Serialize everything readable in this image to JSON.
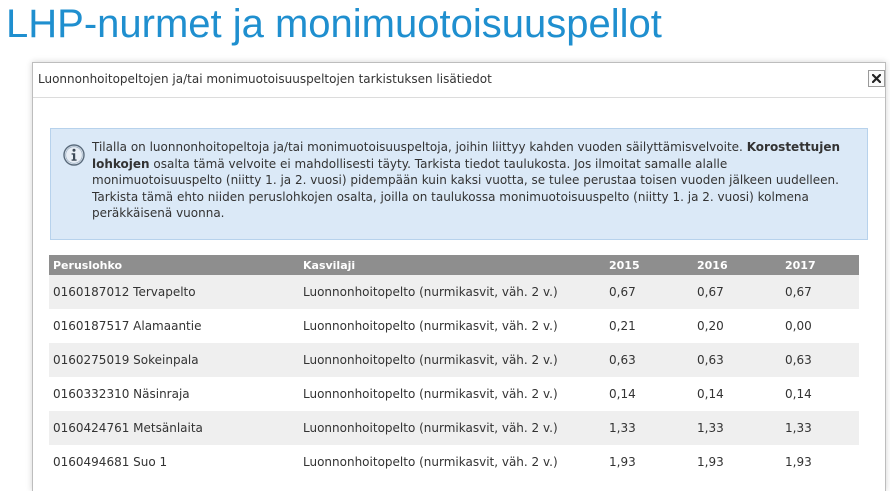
{
  "page": {
    "title": "LHP-nurmet ja monimuotoisuuspellot"
  },
  "dialog": {
    "title": "Luonnonhoitopeltojen ja/tai monimuotoisuuspeltojen tarkistuksen lisätiedot",
    "close_label": "✖",
    "close_icon": "close-icon",
    "info_icon": "info-icon",
    "alert": {
      "text_part1": "Tilalla on luonnonhoitopeltoja ja/tai monimuotoisuuspeltoja, joihin liittyy kahden vuoden säilyttämisvelvoite. ",
      "text_bold": "Korostettujen lohkojen",
      "text_part2": " osalta tämä velvoite ei mahdollisesti täyty. Tarkista tiedot taulukosta. Jos ilmoitat samalle alalle monimuotoisuuspelto (niitty 1. ja 2. vuosi) pidempään kuin kaksi vuotta, se tulee perustaa toisen vuoden jälkeen uudelleen. Tarkista tämä ehto niiden peruslohkojen osalta, joilla on taulukossa monimuotoisuuspelto (niitty 1. ja 2. vuosi) kolmena peräkkäisenä vuonna."
    },
    "table": {
      "headers": [
        "Peruslohko",
        "Kasvilaji",
        "2015",
        "2016",
        "2017"
      ],
      "rows": [
        {
          "lohko": "0160187012 Tervapelto",
          "kasvilaji": "Luonnonhoitopelto (nurmikasvit, väh. 2 v.)",
          "y2015": "0,67",
          "y2016": "0,67",
          "y2017": "0,67"
        },
        {
          "lohko": "0160187517 Alamaantie",
          "kasvilaji": "Luonnonhoitopelto (nurmikasvit, väh. 2 v.)",
          "y2015": "0,21",
          "y2016": "0,20",
          "y2017": "0,00"
        },
        {
          "lohko": "0160275019 Sokeinpala",
          "kasvilaji": "Luonnonhoitopelto (nurmikasvit, väh. 2 v.)",
          "y2015": "0,63",
          "y2016": "0,63",
          "y2017": "0,63"
        },
        {
          "lohko": "0160332310 Näsinraja",
          "kasvilaji": "Luonnonhoitopelto (nurmikasvit, väh. 2 v.)",
          "y2015": "0,14",
          "y2016": "0,14",
          "y2017": "0,14"
        },
        {
          "lohko": "0160424761 Metsänlaita",
          "kasvilaji": "Luonnonhoitopelto (nurmikasvit, väh. 2 v.)",
          "y2015": "1,33",
          "y2016": "1,33",
          "y2017": "1,33"
        },
        {
          "lohko": "0160494681 Suo 1",
          "kasvilaji": "Luonnonhoitopelto (nurmikasvit, väh. 2 v.)",
          "y2015": "1,93",
          "y2016": "1,93",
          "y2017": "1,93"
        }
      ]
    }
  },
  "colors": {
    "title": "#1f8fcf",
    "alert_bg": "#dbe9f7",
    "table_header_bg": "#8e8e8e",
    "row_stripe": "#efefef"
  }
}
